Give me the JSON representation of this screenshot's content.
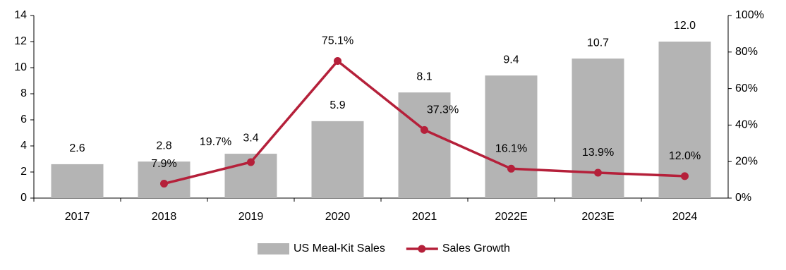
{
  "chart_data": {
    "type": "bar",
    "categories": [
      "2017",
      "2018",
      "2019",
      "2020",
      "2021",
      "2022E",
      "2023E",
      "2024"
    ],
    "series": [
      {
        "name": "US Meal-Kit Sales",
        "type": "bar",
        "color": "#b4b4b4",
        "values": [
          2.6,
          2.8,
          3.4,
          5.9,
          8.1,
          9.4,
          10.7,
          12.0
        ],
        "value_labels": [
          "2.6",
          "2.8",
          "3.4",
          "5.9",
          "8.1",
          "9.4",
          "10.7",
          "12.0"
        ]
      },
      {
        "name": "Sales Growth",
        "type": "line",
        "axis": "y2",
        "color": "#b5203a",
        "values": [
          null,
          7.9,
          19.7,
          75.1,
          37.3,
          16.1,
          13.9,
          12.0
        ],
        "value_labels": [
          null,
          "7.9%",
          "19.7%",
          "75.1%",
          "37.3%",
          "16.1%",
          "13.9%",
          "12.0%"
        ]
      }
    ],
    "ylim": [
      0,
      14
    ],
    "yticks": [
      0,
      2,
      4,
      6,
      8,
      10,
      12,
      14
    ],
    "y2lim": [
      0,
      100
    ],
    "y2ticks": [
      {
        "value": 0,
        "label": "0%"
      },
      {
        "value": 20,
        "label": "20%"
      },
      {
        "value": 40,
        "label": "40%"
      },
      {
        "value": 60,
        "label": "60%"
      },
      {
        "value": 80,
        "label": "80%"
      },
      {
        "value": 100,
        "label": "100%"
      }
    ],
    "legend": "bottom"
  }
}
